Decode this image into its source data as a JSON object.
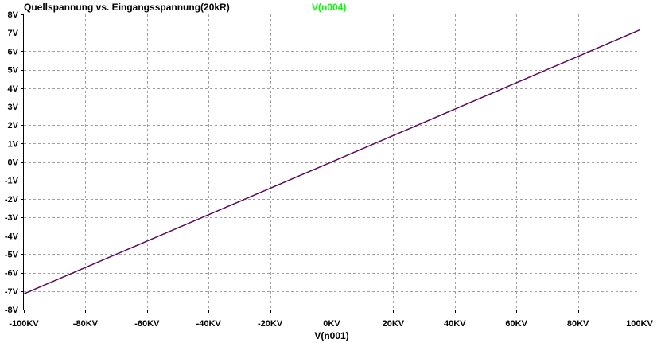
{
  "chart_data": {
    "type": "line",
    "title": "Quellspannung vs. Eingangsspannung(20kR)",
    "xlabel": "V(n001)",
    "ylabel": "",
    "xlim": [
      -100,
      100
    ],
    "ylim": [
      -8,
      8
    ],
    "grid": true,
    "x_tick_labels": [
      "-100KV",
      "-80KV",
      "-60KV",
      "-40KV",
      "-20KV",
      "0KV",
      "20KV",
      "40KV",
      "60KV",
      "80KV",
      "100KV"
    ],
    "y_tick_labels": [
      "8V",
      "7V",
      "6V",
      "5V",
      "4V",
      "3V",
      "2V",
      "1V",
      "0V",
      "-1V",
      "-2V",
      "-3V",
      "-4V",
      "-5V",
      "-6V",
      "-7V",
      "-8V"
    ],
    "series": [
      {
        "name": "V(n004)",
        "label_color": "#00ff00",
        "line_color": "#5a0a5a",
        "x": [
          -100,
          100
        ],
        "y": [
          -7.15,
          7.15
        ]
      }
    ]
  }
}
